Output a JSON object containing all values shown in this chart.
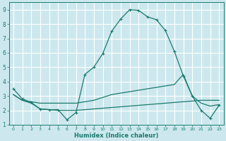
{
  "xlabel": "Humidex (Indice chaleur)",
  "xlim": [
    -0.5,
    23.5
  ],
  "ylim": [
    1,
    9.5
  ],
  "xticks": [
    0,
    1,
    2,
    3,
    4,
    5,
    6,
    7,
    8,
    9,
    10,
    11,
    12,
    13,
    14,
    15,
    16,
    17,
    18,
    19,
    20,
    21,
    22,
    23
  ],
  "yticks": [
    1,
    2,
    3,
    4,
    5,
    6,
    7,
    8,
    9
  ],
  "bg_color": "#cce8ee",
  "grid_color": "#ffffff",
  "line_color": "#1a7a6e",
  "series": [
    {
      "x": [
        0,
        1,
        2,
        3,
        4,
        5,
        6,
        7,
        8,
        9,
        10,
        11,
        12,
        13,
        14,
        15,
        16,
        17,
        18,
        19,
        20,
        21,
        22,
        23
      ],
      "y": [
        3.5,
        2.8,
        2.55,
        2.1,
        2.05,
        2.05,
        1.35,
        1.85,
        4.5,
        5.0,
        5.95,
        7.5,
        8.35,
        9.0,
        8.95,
        8.5,
        8.3,
        7.55,
        6.1,
        4.4,
        3.0,
        2.0,
        1.45,
        2.35
      ],
      "marker": true
    },
    {
      "x": [
        0,
        1,
        2,
        3,
        4,
        5,
        6,
        7,
        8,
        9,
        10,
        11,
        12,
        13,
        14,
        15,
        16,
        17,
        18,
        19,
        20,
        21,
        22,
        23
      ],
      "y": [
        3.1,
        2.7,
        2.6,
        2.5,
        2.5,
        2.5,
        2.5,
        2.5,
        2.6,
        2.7,
        2.9,
        3.1,
        3.2,
        3.3,
        3.4,
        3.5,
        3.6,
        3.7,
        3.8,
        4.5,
        3.0,
        2.5,
        2.3,
        2.4
      ],
      "marker": false
    },
    {
      "x": [
        0,
        1,
        2,
        3,
        4,
        5,
        6,
        7,
        8,
        9,
        10,
        11,
        12,
        13,
        14,
        15,
        16,
        17,
        18,
        19,
        20,
        21,
        22,
        23
      ],
      "y": [
        3.1,
        2.7,
        2.5,
        2.1,
        2.05,
        2.0,
        2.0,
        2.0,
        2.05,
        2.1,
        2.15,
        2.2,
        2.25,
        2.3,
        2.35,
        2.4,
        2.45,
        2.5,
        2.55,
        2.6,
        2.65,
        2.7,
        2.7,
        2.7
      ],
      "marker": false
    }
  ]
}
